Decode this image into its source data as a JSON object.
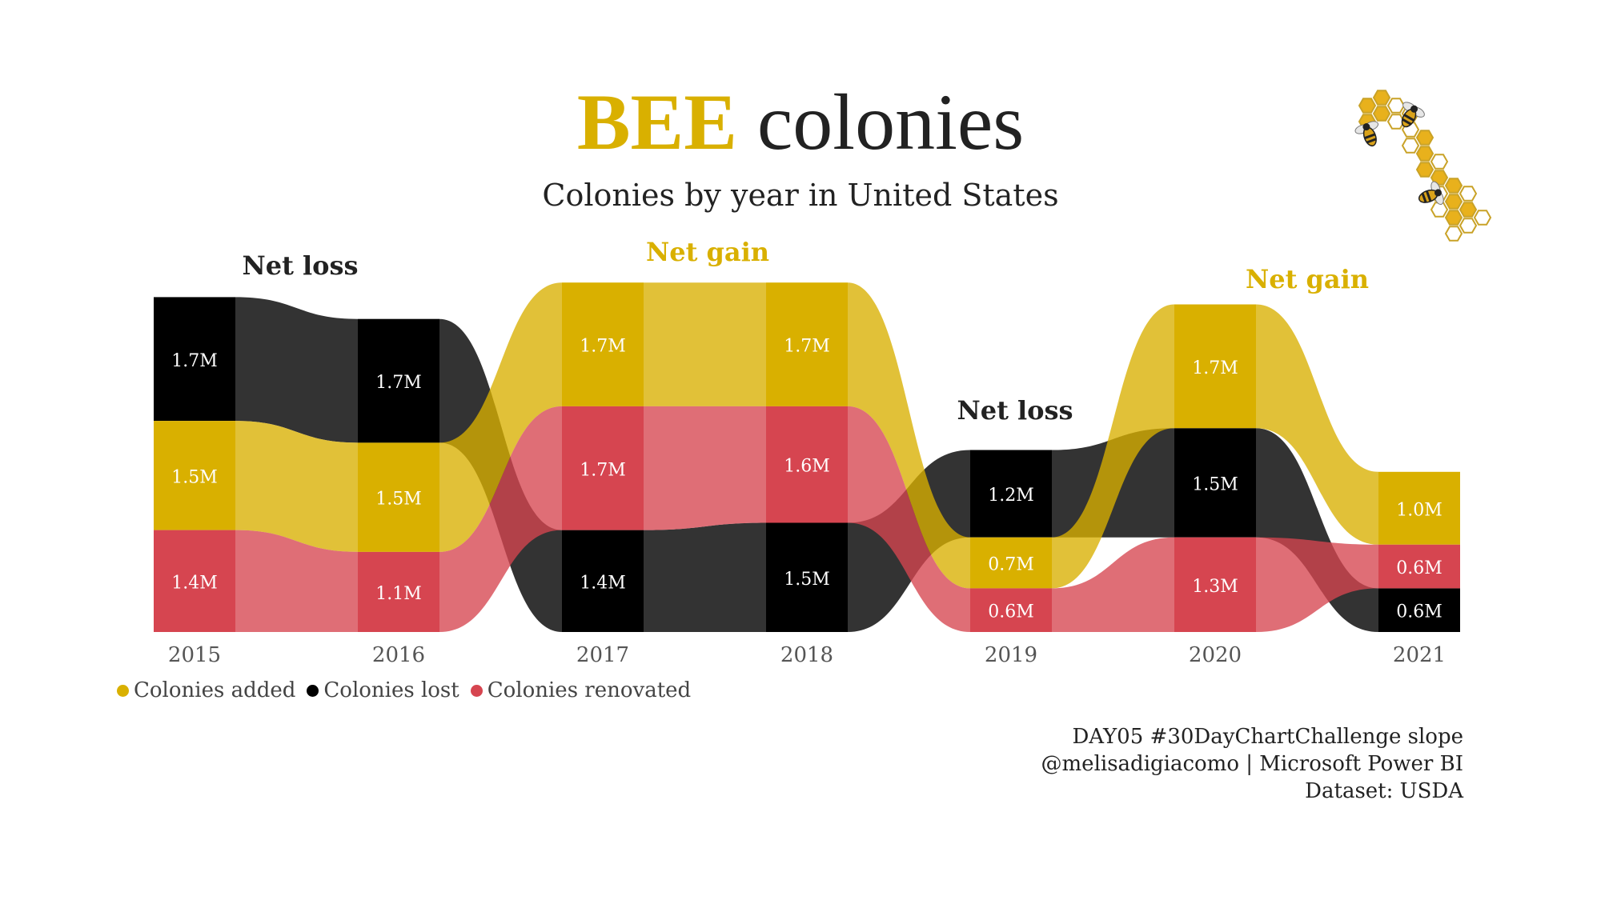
{
  "title": {
    "highlight": "BEE",
    "rest": " colonies"
  },
  "subtitle": "Colonies by year in United States",
  "colors": {
    "added": "#d9b000",
    "lost": "#000000",
    "renovated": "#d64550",
    "gain_label": "#d9b000",
    "loss_label": "#222222"
  },
  "legend": [
    {
      "name": "Colonies added",
      "color": "#d9b000"
    },
    {
      "name": "Colonies lost",
      "color": "#000000"
    },
    {
      "name": "Colonies renovated",
      "color": "#d64550"
    }
  ],
  "annotations": [
    {
      "text": "Net loss",
      "between": [
        "2015",
        "2016"
      ],
      "kind": "loss"
    },
    {
      "text": "Net gain",
      "between": [
        "2017",
        "2018"
      ],
      "kind": "gain"
    },
    {
      "text": "Net loss",
      "between": [
        "2019",
        "2019"
      ],
      "kind": "loss"
    },
    {
      "text": "Net gain",
      "between": [
        "2020",
        "2021"
      ],
      "kind": "gain"
    }
  ],
  "credits": [
    "DAY05 #30DayChartChallenge slope",
    "@melisadigiacomo | Microsoft Power BI",
    "Dataset: USDA"
  ],
  "decoration": "bee-honeycomb-icon",
  "chart_data": {
    "type": "ribbon",
    "categories": [
      "2015",
      "2016",
      "2017",
      "2018",
      "2019",
      "2020",
      "2021"
    ],
    "unit": "M",
    "series": [
      {
        "name": "Colonies added",
        "key": "added",
        "values": [
          1.5,
          1.5,
          1.7,
          1.7,
          0.7,
          1.7,
          1.0
        ],
        "labels": [
          "1.5M",
          "1.5M",
          "1.7M",
          "1.7M",
          "0.7M",
          "1.7M",
          "1.0M"
        ]
      },
      {
        "name": "Colonies lost",
        "key": "lost",
        "values": [
          1.7,
          1.7,
          1.4,
          1.5,
          1.2,
          1.5,
          0.6
        ],
        "labels": [
          "1.7M",
          "1.7M",
          "1.4M",
          "1.5M",
          "1.2M",
          "1.5M",
          "0.6M"
        ]
      },
      {
        "name": "Colonies renovated",
        "key": "renovated",
        "values": [
          1.4,
          1.1,
          1.7,
          1.6,
          0.6,
          1.3,
          0.6
        ],
        "labels": [
          "1.4M",
          "1.1M",
          "1.7M",
          "1.6M",
          "0.6M",
          "1.3M",
          "0.6M"
        ]
      }
    ],
    "stack_order": [
      [
        "lost",
        "added",
        "renovated"
      ],
      [
        "lost",
        "added",
        "renovated"
      ],
      [
        "added",
        "renovated",
        "lost"
      ],
      [
        "added",
        "renovated",
        "lost"
      ],
      [
        "lost",
        "added",
        "renovated"
      ],
      [
        "added",
        "lost",
        "renovated"
      ],
      [
        "added",
        "renovated",
        "lost"
      ]
    ],
    "legend_position": "bottom-left",
    "grid": false
  }
}
